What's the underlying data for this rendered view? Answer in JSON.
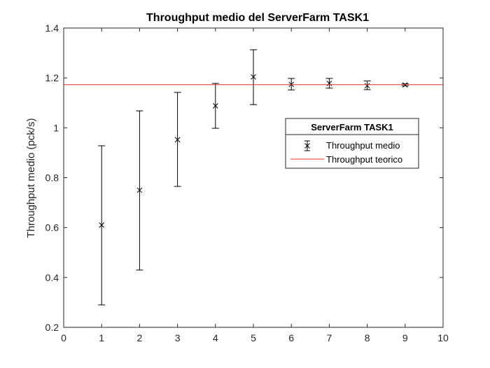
{
  "chart_data": {
    "type": "scatter",
    "title": "Throughput medio del ServerFarm TASK1",
    "xlabel": "",
    "ylabel": "Throughput medio (pck/s)",
    "xlim": [
      0,
      10
    ],
    "ylim": [
      0.2,
      1.4
    ],
    "xticks": [
      "0",
      "1",
      "2",
      "3",
      "4",
      "5",
      "6",
      "7",
      "8",
      "9",
      "10"
    ],
    "yticks": [
      "0.2",
      "0.4",
      "0.6",
      "0.8",
      "1",
      "1.2",
      "1.4"
    ],
    "grid": false,
    "legend": {
      "title": "ServerFarm TASK1",
      "placement": "right",
      "entries": [
        "Throughput medio",
        "Throughput teorico"
      ]
    },
    "series": [
      {
        "name": "Throughput medio",
        "kind": "errorbar",
        "color": "#000000",
        "marker": "x",
        "x": [
          1,
          2,
          3,
          4,
          5,
          6,
          7,
          8,
          9
        ],
        "y": [
          0.61,
          0.75,
          0.952,
          1.088,
          1.204,
          1.174,
          1.178,
          1.169,
          1.172
        ],
        "lower": [
          0.29,
          0.43,
          0.765,
          0.998,
          1.093,
          1.152,
          1.159,
          1.153,
          1.168
        ],
        "upper": [
          0.928,
          1.068,
          1.142,
          1.178,
          1.313,
          1.198,
          1.198,
          1.188,
          1.176
        ]
      },
      {
        "name": "Throughput teorico",
        "kind": "hline",
        "color": "#e8312f",
        "y": 1.173
      }
    ]
  }
}
